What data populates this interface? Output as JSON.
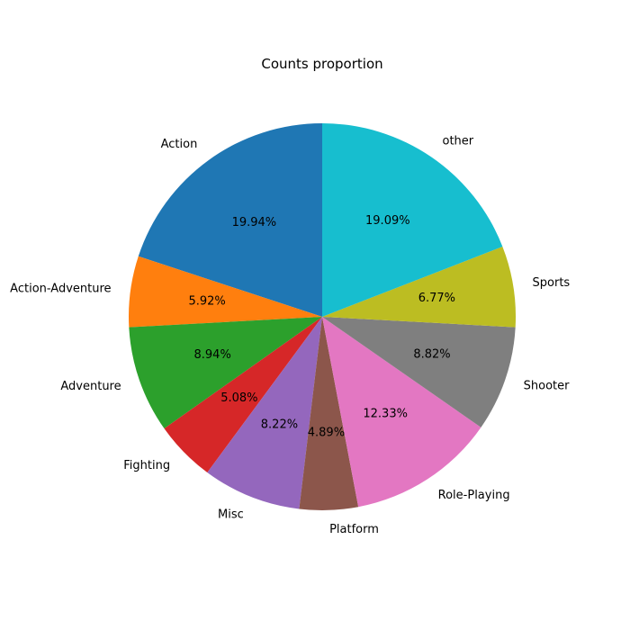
{
  "chart_data": {
    "type": "pie",
    "title": "Counts proportion",
    "categories": [
      "Action",
      "Action-Adventure",
      "Adventure",
      "Fighting",
      "Misc",
      "Platform",
      "Role-Playing",
      "Shooter",
      "Sports",
      "other"
    ],
    "values": [
      19.94,
      5.92,
      8.94,
      5.08,
      8.22,
      4.89,
      12.33,
      8.82,
      6.77,
      19.09
    ],
    "value_labels": [
      "19.94%",
      "5.92%",
      "8.94%",
      "5.08%",
      "8.22%",
      "4.89%",
      "12.33%",
      "8.82%",
      "6.77%",
      "19.09%"
    ],
    "colors": [
      "#1f77b4",
      "#ff7f0e",
      "#2ca02c",
      "#d62728",
      "#9467bd",
      "#8c564b",
      "#e377c2",
      "#7f7f7f",
      "#bcbd22",
      "#17becf"
    ],
    "start_angle": 90,
    "direction": "counterclockwise",
    "legend": "none"
  }
}
